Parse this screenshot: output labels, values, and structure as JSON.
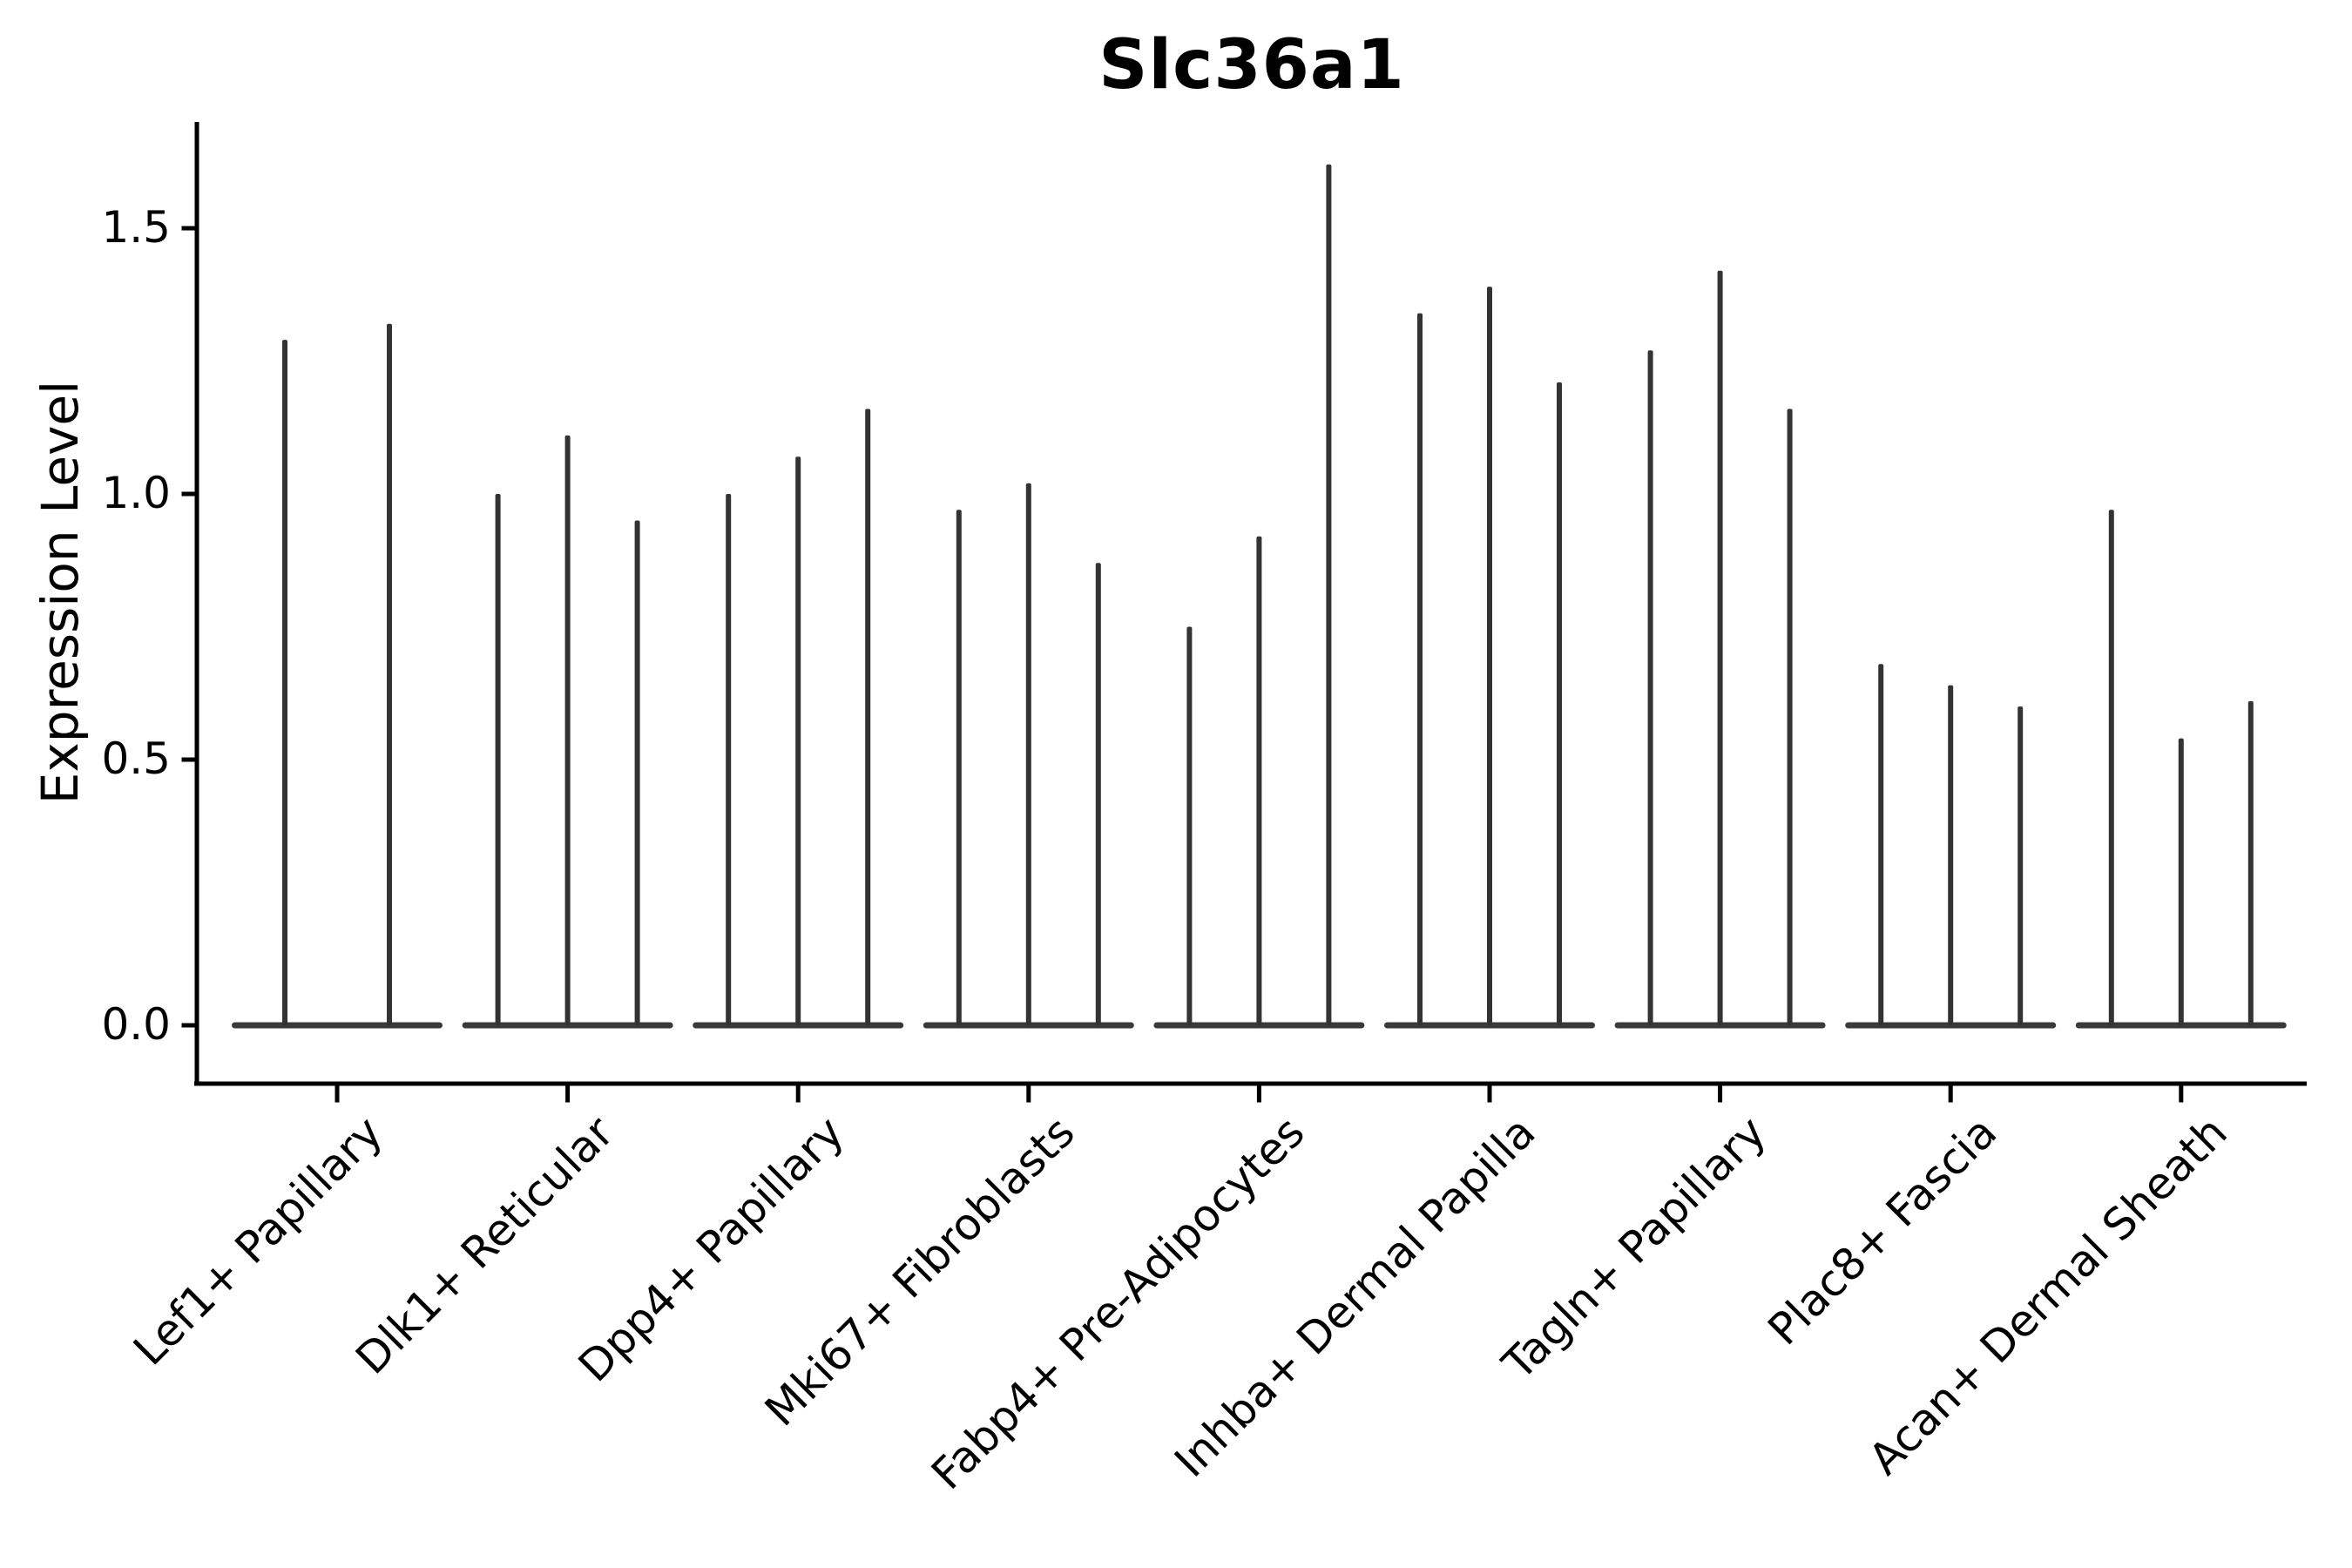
{
  "chart_data": {
    "type": "violin",
    "title": "Slc36a1",
    "ylabel": "Expression Level",
    "xlabel": "",
    "grid": false,
    "legend": null,
    "background_color": "#ffffff",
    "axis_color": "#000000",
    "violin_color": "#333333",
    "violin_base_color": "#3a3a3a",
    "ylim": [
      -0.11,
      1.7
    ],
    "yticks": [
      {
        "label": "0.0",
        "value": 0.0
      },
      {
        "label": "0.5",
        "value": 0.5
      },
      {
        "label": "1.0",
        "value": 1.0
      },
      {
        "label": "1.5",
        "value": 1.5
      }
    ],
    "categories": [
      "Lef1+ Papillary",
      "Dlk1+ Reticular",
      "Dpp4+ Papillary",
      "Mki67+ Fibroblasts",
      "Fabp4+ Pre-Adipocytes",
      "Inhba+ Dermal Papilla",
      "Tagln+ Papillary",
      "Plac8+ Fascia",
      "Acan+ Dermal Sheath"
    ],
    "violins": [
      {
        "category": "Lef1+ Papillary",
        "expression_max": [
          1.29,
          1.32
        ]
      },
      {
        "category": "Dlk1+ Reticular",
        "expression_max": [
          1.0,
          1.11,
          0.95
        ]
      },
      {
        "category": "Dpp4+ Papillary",
        "expression_max": [
          1.0,
          1.07,
          1.16
        ]
      },
      {
        "category": "Mki67+ Fibroblasts",
        "expression_max": [
          0.97,
          1.02,
          0.87
        ]
      },
      {
        "category": "Fabp4+ Pre-Adipocytes",
        "expression_max": [
          0.75,
          0.92,
          1.62
        ]
      },
      {
        "category": "Inhba+ Dermal Papilla",
        "expression_max": [
          1.34,
          1.39,
          1.21
        ]
      },
      {
        "category": "Tagln+ Papillary",
        "expression_max": [
          1.27,
          1.42,
          1.16
        ]
      },
      {
        "category": "Plac8+ Fascia",
        "expression_max": [
          0.68,
          0.64,
          0.6
        ]
      },
      {
        "category": "Acan+ Dermal Sheath",
        "expression_max": [
          0.97,
          0.54,
          0.61
        ]
      }
    ],
    "shape_note": "Each violin is an extremely thin spike: density mass concentrated at 0 (flat wide base) with a hairline spike up to the max expression value."
  }
}
